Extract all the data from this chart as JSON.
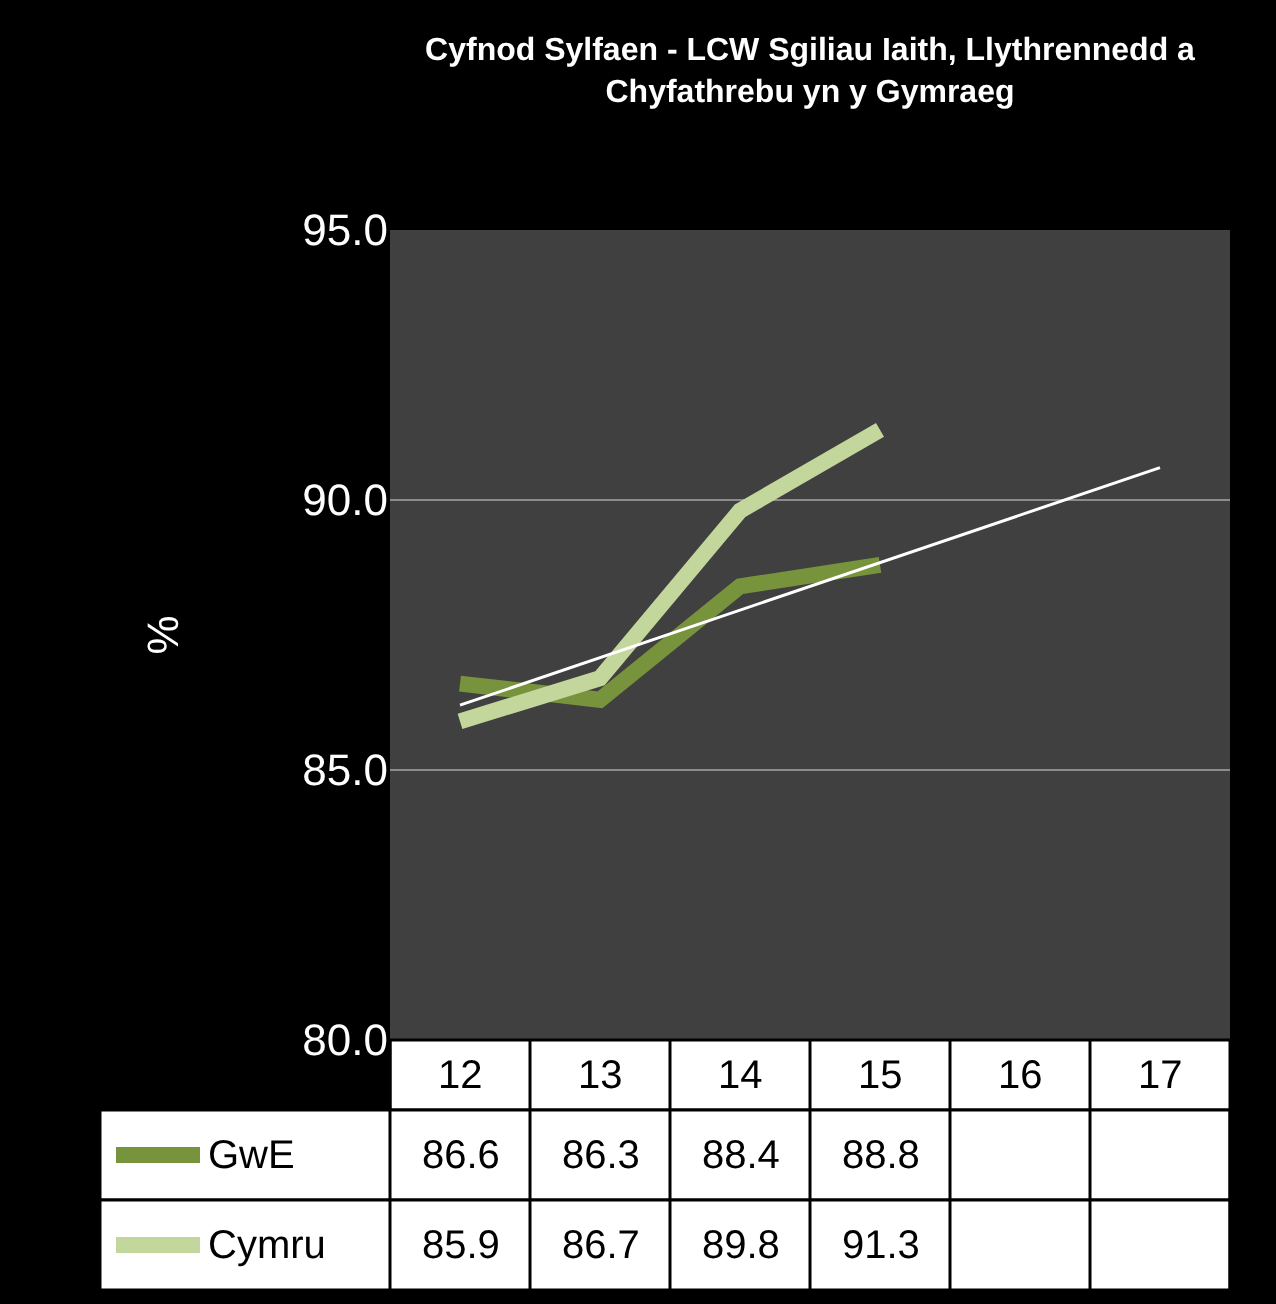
{
  "chart_data": {
    "type": "line",
    "title": "Cyfnod Sylfaen - LCW Sgiliau Iaith, Llythrennedd a\nChyfathrebu yn y Gymraeg",
    "ylabel": "%",
    "categories": [
      "12",
      "13",
      "14",
      "15",
      "16",
      "17"
    ],
    "series": [
      {
        "name": "GwE",
        "color": "#77933c",
        "values": [
          86.6,
          86.3,
          88.4,
          88.8,
          null,
          null
        ],
        "value_labels": [
          "86.6",
          "86.3",
          "88.4",
          "88.8",
          null,
          null
        ]
      },
      {
        "name": "Cymru",
        "color": "#c3d69b",
        "values": [
          85.9,
          86.7,
          89.8,
          91.3,
          null,
          null
        ],
        "value_labels": [
          "85.9",
          "86.7",
          "89.8",
          "91.3",
          null,
          null
        ]
      },
      {
        "color": "#ffffff",
        "values": [
          86.2,
          90.6
        ],
        "x": [
          "12",
          "17"
        ]
      }
    ],
    "ylim": [
      80,
      95
    ],
    "yticks": [
      {
        "value": 80,
        "label": "80.0"
      },
      {
        "value": 85,
        "label": "85.0"
      },
      {
        "value": 90,
        "label": "90.0"
      },
      {
        "value": 95,
        "label": "95.0"
      }
    ],
    "grid": "y",
    "legend": "bottom",
    "marker": "none",
    "line_style": "solid"
  }
}
